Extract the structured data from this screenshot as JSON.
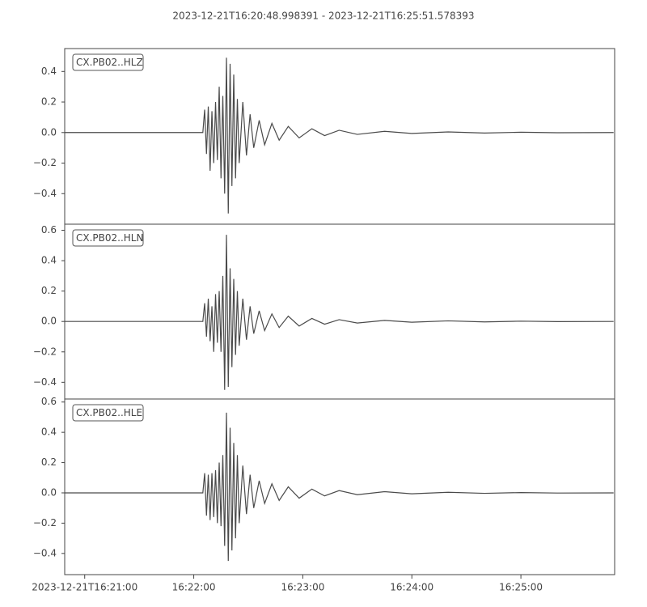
{
  "title": "2023-12-21T16:20:48.998391  -  2023-12-21T16:25:51.578393",
  "chart_data": [
    {
      "type": "line",
      "title": "CX.PB02..HLZ",
      "color": "#4a4a4a",
      "xlim": [
        "16:20:48.998391",
        "16:25:51.578393"
      ],
      "ylim": [
        -0.6,
        0.55
      ],
      "yticks": [
        {
          "value": -0.4,
          "label": "−0.4"
        },
        {
          "value": -0.2,
          "label": "−0.2"
        },
        {
          "value": 0,
          "label": "0.0"
        },
        {
          "value": 0.2,
          "label": "0.2"
        },
        {
          "value": 0.4,
          "label": "0.4"
        }
      ],
      "x": [
        "16:20:49",
        "16:22:05",
        "16:22:06",
        "16:22:07",
        "16:22:08",
        "16:22:09",
        "16:22:10",
        "16:22:11",
        "16:22:12",
        "16:22:13",
        "16:22:14",
        "16:22:15",
        "16:22:16",
        "16:22:17",
        "16:22:18",
        "16:22:19",
        "16:22:20",
        "16:22:21",
        "16:22:22",
        "16:22:23",
        "16:22:24",
        "16:22:25",
        "16:22:27",
        "16:22:29",
        "16:22:31",
        "16:22:33",
        "16:22:36",
        "16:22:39",
        "16:22:43",
        "16:22:47",
        "16:22:52",
        "16:22:58",
        "16:23:05",
        "16:23:12",
        "16:23:20",
        "16:23:30",
        "16:23:45",
        "16:24:00",
        "16:24:20",
        "16:24:40",
        "16:25:00",
        "16:25:20",
        "16:25:51"
      ],
      "values": [
        0,
        0,
        0.15,
        -0.14,
        0.17,
        -0.25,
        0.14,
        -0.2,
        0.2,
        -0.18,
        0.3,
        -0.3,
        0.24,
        -0.4,
        0.49,
        -0.53,
        0.45,
        -0.35,
        0.38,
        -0.3,
        0.22,
        -0.2,
        0.2,
        -0.15,
        0.12,
        -0.1,
        0.08,
        -0.08,
        0.06,
        -0.05,
        0.04,
        -0.035,
        0.025,
        -0.02,
        0.015,
        -0.012,
        0.008,
        -0.006,
        0.004,
        -0.003,
        0.002,
        -0.001,
        0
      ]
    },
    {
      "type": "line",
      "title": "CX.PB02..HLN",
      "color": "#4a4a4a",
      "xlim": [
        "16:20:48.998391",
        "16:25:51.578393"
      ],
      "ylim": [
        -0.51,
        0.64
      ],
      "yticks": [
        {
          "value": -0.4,
          "label": "−0.4"
        },
        {
          "value": -0.2,
          "label": "−0.2"
        },
        {
          "value": 0,
          "label": "0.0"
        },
        {
          "value": 0.2,
          "label": "0.2"
        },
        {
          "value": 0.4,
          "label": "0.4"
        },
        {
          "value": 0.6,
          "label": "0.6"
        }
      ],
      "x": [
        "16:20:49",
        "16:22:05",
        "16:22:06",
        "16:22:07",
        "16:22:08",
        "16:22:09",
        "16:22:10",
        "16:22:11",
        "16:22:12",
        "16:22:13",
        "16:22:14",
        "16:22:15",
        "16:22:16",
        "16:22:17",
        "16:22:18",
        "16:22:19",
        "16:22:20",
        "16:22:21",
        "16:22:22",
        "16:22:23",
        "16:22:24",
        "16:22:25",
        "16:22:27",
        "16:22:29",
        "16:22:31",
        "16:22:33",
        "16:22:36",
        "16:22:39",
        "16:22:43",
        "16:22:47",
        "16:22:52",
        "16:22:58",
        "16:23:05",
        "16:23:12",
        "16:23:20",
        "16:23:30",
        "16:23:45",
        "16:24:00",
        "16:24:20",
        "16:24:40",
        "16:25:00",
        "16:25:20",
        "16:25:51"
      ],
      "values": [
        0,
        0,
        0.12,
        -0.1,
        0.15,
        -0.13,
        0.1,
        -0.2,
        0.18,
        -0.14,
        0.2,
        -0.2,
        0.3,
        -0.45,
        0.57,
        -0.43,
        0.35,
        -0.3,
        0.28,
        -0.22,
        0.2,
        -0.16,
        0.15,
        -0.12,
        0.1,
        -0.08,
        0.07,
        -0.06,
        0.05,
        -0.04,
        0.035,
        -0.03,
        0.02,
        -0.018,
        0.012,
        -0.01,
        0.007,
        -0.005,
        0.004,
        -0.003,
        0.002,
        -0.001,
        0
      ]
    },
    {
      "type": "line",
      "title": "CX.PB02..HLE",
      "color": "#4a4a4a",
      "xlim": [
        "16:20:48.998391",
        "16:25:51.578393"
      ],
      "ylim": [
        -0.54,
        0.62
      ],
      "yticks": [
        {
          "value": -0.4,
          "label": "−0.4"
        },
        {
          "value": -0.2,
          "label": "−0.2"
        },
        {
          "value": 0,
          "label": "0.0"
        },
        {
          "value": 0.2,
          "label": "0.2"
        },
        {
          "value": 0.4,
          "label": "0.4"
        },
        {
          "value": 0.6,
          "label": "0.6"
        }
      ],
      "x": [
        "16:20:49",
        "16:22:05",
        "16:22:06",
        "16:22:07",
        "16:22:08",
        "16:22:09",
        "16:22:10",
        "16:22:11",
        "16:22:12",
        "16:22:13",
        "16:22:14",
        "16:22:15",
        "16:22:16",
        "16:22:17",
        "16:22:18",
        "16:22:19",
        "16:22:20",
        "16:22:21",
        "16:22:22",
        "16:22:23",
        "16:22:24",
        "16:22:25",
        "16:22:27",
        "16:22:29",
        "16:22:31",
        "16:22:33",
        "16:22:36",
        "16:22:39",
        "16:22:43",
        "16:22:47",
        "16:22:52",
        "16:22:58",
        "16:23:05",
        "16:23:12",
        "16:23:20",
        "16:23:30",
        "16:23:45",
        "16:24:00",
        "16:24:20",
        "16:24:40",
        "16:25:00",
        "16:25:20",
        "16:25:51"
      ],
      "values": [
        0,
        0,
        0.13,
        -0.15,
        0.12,
        -0.18,
        0.13,
        -0.16,
        0.15,
        -0.2,
        0.2,
        -0.22,
        0.25,
        -0.35,
        0.53,
        -0.45,
        0.43,
        -0.38,
        0.33,
        -0.3,
        0.25,
        -0.2,
        0.18,
        -0.14,
        0.12,
        -0.1,
        0.08,
        -0.07,
        0.06,
        -0.05,
        0.04,
        -0.035,
        0.025,
        -0.02,
        0.015,
        -0.012,
        0.008,
        -0.006,
        0.004,
        -0.003,
        0.002,
        -0.001,
        0
      ]
    }
  ],
  "xticks": [
    {
      "value": "16:21:00",
      "label": "2023-12-21T16:21:00"
    },
    "16:22:00",
    "16:23:00",
    "16:24:00",
    "16:25:00"
  ]
}
